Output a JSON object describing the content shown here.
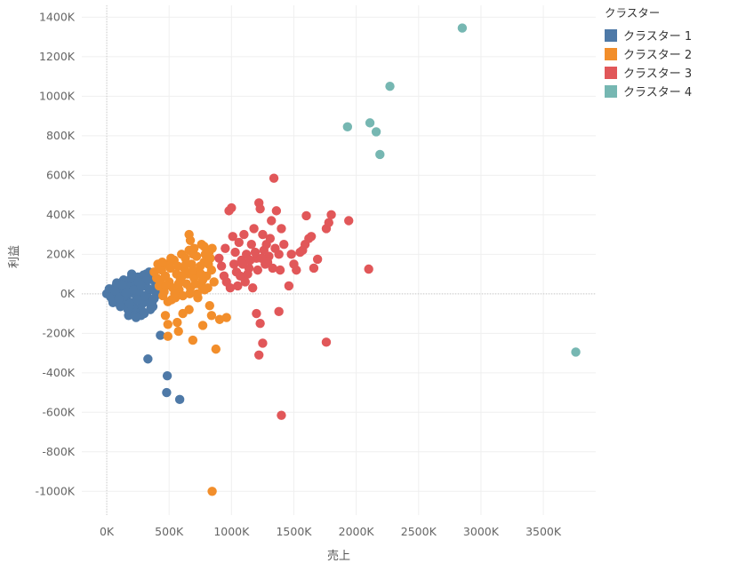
{
  "chart_data": {
    "type": "scatter",
    "xlabel": "売上",
    "ylabel": "利益",
    "xlim": [
      -200000,
      3920000
    ],
    "ylim": [
      -1120000,
      1460000
    ],
    "x_ticks": [
      0,
      500000,
      1000000,
      1500000,
      2000000,
      2500000,
      3000000,
      3500000
    ],
    "x_tick_labels": [
      "0K",
      "500K",
      "1000K",
      "1500K",
      "2000K",
      "2500K",
      "3000K",
      "3500K"
    ],
    "y_ticks": [
      1400000,
      1200000,
      1000000,
      800000,
      600000,
      400000,
      200000,
      0,
      -200000,
      -400000,
      -600000,
      -800000,
      -1000000
    ],
    "y_tick_labels": [
      "1400K",
      "1200K",
      "1000K",
      "800K",
      "600K",
      "400K",
      "200K",
      "0K",
      "-200K",
      "-400K",
      "-600K",
      "-800K",
      "-1000K"
    ],
    "grid": true,
    "legend_title": "クラスター",
    "legend_position": "top-right",
    "series": [
      {
        "name": "クラスター 1",
        "color": "#4e79a7",
        "points": [
          [
            0,
            0
          ],
          [
            15000,
            10000
          ],
          [
            25000,
            -5000
          ],
          [
            40000,
            20000
          ],
          [
            55000,
            -15000
          ],
          [
            70000,
            30000
          ],
          [
            85000,
            -25000
          ],
          [
            100000,
            45000
          ],
          [
            115000,
            10000
          ],
          [
            130000,
            -35000
          ],
          [
            145000,
            55000
          ],
          [
            160000,
            -20000
          ],
          [
            175000,
            65000
          ],
          [
            190000,
            5000
          ],
          [
            205000,
            -45000
          ],
          [
            220000,
            75000
          ],
          [
            235000,
            -10000
          ],
          [
            250000,
            85000
          ],
          [
            265000,
            30000
          ],
          [
            280000,
            -55000
          ],
          [
            295000,
            95000
          ],
          [
            310000,
            40000
          ],
          [
            325000,
            -30000
          ],
          [
            340000,
            110000
          ],
          [
            355000,
            20000
          ],
          [
            370000,
            -65000
          ],
          [
            385000,
            60000
          ],
          [
            400000,
            -5000
          ],
          [
            60000,
            5000
          ],
          [
            90000,
            -8000
          ],
          [
            120000,
            25000
          ],
          [
            150000,
            -40000
          ],
          [
            180000,
            35000
          ],
          [
            210000,
            -60000
          ],
          [
            240000,
            50000
          ],
          [
            270000,
            -75000
          ],
          [
            300000,
            70000
          ],
          [
            330000,
            -20000
          ],
          [
            360000,
            80000
          ],
          [
            390000,
            15000
          ],
          [
            45000,
            -30000
          ],
          [
            75000,
            40000
          ],
          [
            105000,
            -55000
          ],
          [
            135000,
            70000
          ],
          [
            165000,
            -70000
          ],
          [
            195000,
            80000
          ],
          [
            225000,
            -85000
          ],
          [
            255000,
            60000
          ],
          [
            285000,
            -90000
          ],
          [
            315000,
            100000
          ],
          [
            345000,
            -50000
          ],
          [
            375000,
            90000
          ],
          [
            20000,
            25000
          ],
          [
            50000,
            -45000
          ],
          [
            80000,
            55000
          ],
          [
            110000,
            -65000
          ],
          [
            140000,
            -10000
          ],
          [
            170000,
            -80000
          ],
          [
            200000,
            100000
          ],
          [
            230000,
            -95000
          ],
          [
            260000,
            15000
          ],
          [
            290000,
            -40000
          ],
          [
            320000,
            65000
          ],
          [
            350000,
            -80000
          ],
          [
            380000,
            -25000
          ],
          [
            410000,
            50000
          ],
          [
            30000,
            -15000
          ],
          [
            65000,
            15000
          ],
          [
            95000,
            -25000
          ],
          [
            125000,
            45000
          ],
          [
            155000,
            5000
          ],
          [
            185000,
            -50000
          ],
          [
            215000,
            20000
          ],
          [
            245000,
            -30000
          ],
          [
            275000,
            40000
          ],
          [
            305000,
            -10000
          ],
          [
            335000,
            25000
          ],
          [
            365000,
            -40000
          ],
          [
            175000,
            -110000
          ],
          [
            225000,
            -110000
          ],
          [
            275000,
            -110000
          ],
          [
            300000,
            -100000
          ],
          [
            235000,
            -120000
          ],
          [
            330000,
            -330000
          ],
          [
            430000,
            -210000
          ],
          [
            485000,
            -415000
          ],
          [
            480000,
            -500000
          ],
          [
            585000,
            -535000
          ]
        ]
      },
      {
        "name": "クラスター 2",
        "color": "#f28e2b",
        "points": [
          [
            380000,
            110000
          ],
          [
            400000,
            80000
          ],
          [
            420000,
            40000
          ],
          [
            440000,
            120000
          ],
          [
            460000,
            10000
          ],
          [
            480000,
            150000
          ],
          [
            500000,
            60000
          ],
          [
            520000,
            -30000
          ],
          [
            540000,
            170000
          ],
          [
            560000,
            100000
          ],
          [
            580000,
            20000
          ],
          [
            600000,
            200000
          ],
          [
            620000,
            130000
          ],
          [
            640000,
            50000
          ],
          [
            660000,
            220000
          ],
          [
            680000,
            150000
          ],
          [
            700000,
            80000
          ],
          [
            720000,
            190000
          ],
          [
            740000,
            110000
          ],
          [
            760000,
            40000
          ],
          [
            780000,
            160000
          ],
          [
            800000,
            90000
          ],
          [
            820000,
            210000
          ],
          [
            840000,
            120000
          ],
          [
            860000,
            60000
          ],
          [
            430000,
            70000
          ],
          [
            450000,
            -10000
          ],
          [
            470000,
            90000
          ],
          [
            490000,
            -40000
          ],
          [
            510000,
            130000
          ],
          [
            530000,
            30000
          ],
          [
            550000,
            -20000
          ],
          [
            570000,
            140000
          ],
          [
            590000,
            70000
          ],
          [
            610000,
            -10000
          ],
          [
            630000,
            180000
          ],
          [
            650000,
            100000
          ],
          [
            670000,
            30000
          ],
          [
            690000,
            120000
          ],
          [
            710000,
            50000
          ],
          [
            730000,
            -20000
          ],
          [
            750000,
            140000
          ],
          [
            770000,
            70000
          ],
          [
            790000,
            200000
          ],
          [
            810000,
            30000
          ],
          [
            830000,
            180000
          ],
          [
            410000,
            150000
          ],
          [
            445000,
            160000
          ],
          [
            475000,
            40000
          ],
          [
            515000,
            180000
          ],
          [
            545000,
            0
          ],
          [
            575000,
            50000
          ],
          [
            605000,
            90000
          ],
          [
            635000,
            150000
          ],
          [
            665000,
            0
          ],
          [
            695000,
            200000
          ],
          [
            725000,
            0
          ],
          [
            755000,
            100000
          ],
          [
            785000,
            20000
          ],
          [
            815000,
            150000
          ],
          [
            845000,
            230000
          ],
          [
            660000,
            300000
          ],
          [
            670000,
            270000
          ],
          [
            760000,
            250000
          ],
          [
            780000,
            240000
          ],
          [
            700000,
            230000
          ],
          [
            470000,
            -110000
          ],
          [
            490000,
            -155000
          ],
          [
            490000,
            -215000
          ],
          [
            565000,
            -145000
          ],
          [
            575000,
            -190000
          ],
          [
            610000,
            -100000
          ],
          [
            660000,
            -80000
          ],
          [
            690000,
            -235000
          ],
          [
            770000,
            -160000
          ],
          [
            825000,
            -60000
          ],
          [
            840000,
            -110000
          ],
          [
            905000,
            -130000
          ],
          [
            960000,
            -120000
          ],
          [
            875000,
            -280000
          ],
          [
            845000,
            -1000000
          ]
        ]
      },
      {
        "name": "クラスター 3",
        "color": "#e15759",
        "points": [
          [
            900000,
            180000
          ],
          [
            920000,
            140000
          ],
          [
            950000,
            230000
          ],
          [
            980000,
            420000
          ],
          [
            1000000,
            435000
          ],
          [
            1010000,
            290000
          ],
          [
            1020000,
            150000
          ],
          [
            1030000,
            210000
          ],
          [
            1040000,
            110000
          ],
          [
            1060000,
            260000
          ],
          [
            1080000,
            170000
          ],
          [
            1100000,
            300000
          ],
          [
            1120000,
            200000
          ],
          [
            1140000,
            130000
          ],
          [
            1160000,
            250000
          ],
          [
            1180000,
            330000
          ],
          [
            1200000,
            180000
          ],
          [
            1220000,
            460000
          ],
          [
            1230000,
            430000
          ],
          [
            1250000,
            300000
          ],
          [
            1260000,
            220000
          ],
          [
            1270000,
            150000
          ],
          [
            1280000,
            250000
          ],
          [
            1300000,
            190000
          ],
          [
            1320000,
            370000
          ],
          [
            1340000,
            585000
          ],
          [
            1360000,
            420000
          ],
          [
            1380000,
            200000
          ],
          [
            1400000,
            330000
          ],
          [
            1420000,
            250000
          ],
          [
            940000,
            90000
          ],
          [
            960000,
            60000
          ],
          [
            990000,
            30000
          ],
          [
            1050000,
            40000
          ],
          [
            1070000,
            90000
          ],
          [
            1090000,
            150000
          ],
          [
            1110000,
            60000
          ],
          [
            1130000,
            100000
          ],
          [
            1150000,
            170000
          ],
          [
            1170000,
            30000
          ],
          [
            1190000,
            210000
          ],
          [
            1210000,
            120000
          ],
          [
            1240000,
            180000
          ],
          [
            1290000,
            160000
          ],
          [
            1310000,
            280000
          ],
          [
            1330000,
            130000
          ],
          [
            1350000,
            230000
          ],
          [
            1390000,
            120000
          ],
          [
            1460000,
            40000
          ],
          [
            1480000,
            200000
          ],
          [
            1500000,
            150000
          ],
          [
            1520000,
            120000
          ],
          [
            1550000,
            210000
          ],
          [
            1570000,
            220000
          ],
          [
            1590000,
            250000
          ],
          [
            1600000,
            395000
          ],
          [
            1620000,
            280000
          ],
          [
            1640000,
            290000
          ],
          [
            1660000,
            130000
          ],
          [
            1690000,
            175000
          ],
          [
            1760000,
            330000
          ],
          [
            1780000,
            360000
          ],
          [
            1800000,
            400000
          ],
          [
            1940000,
            370000
          ],
          [
            2100000,
            125000
          ],
          [
            1200000,
            -100000
          ],
          [
            1230000,
            -150000
          ],
          [
            1250000,
            -250000
          ],
          [
            1220000,
            -310000
          ],
          [
            1380000,
            -90000
          ],
          [
            1400000,
            -615000
          ],
          [
            1760000,
            -245000
          ]
        ]
      },
      {
        "name": "クラスター 4",
        "color": "#76b7b2",
        "points": [
          [
            1930000,
            845000
          ],
          [
            2110000,
            865000
          ],
          [
            2160000,
            820000
          ],
          [
            2190000,
            705000
          ],
          [
            2270000,
            1050000
          ],
          [
            2850000,
            1345000
          ],
          [
            3760000,
            -295000
          ]
        ]
      }
    ]
  }
}
